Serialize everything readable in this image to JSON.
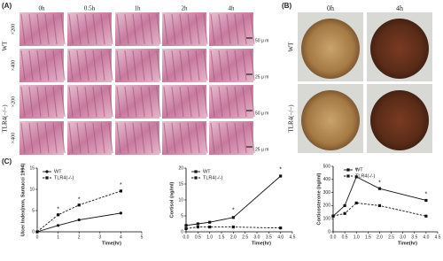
{
  "panel_a": {
    "label": "(A)",
    "times": [
      "0h",
      "0.5h",
      "1h",
      "2h",
      "4h"
    ],
    "groups": [
      {
        "name": "WT",
        "rows": [
          {
            "magnification": "×200",
            "scale": "50 μ m"
          },
          {
            "magnification": "×400",
            "scale": "25 μ m"
          }
        ]
      },
      {
        "name": "TLR4(−/−)",
        "rows": [
          {
            "magnification": "×200",
            "scale": "50 μ m"
          },
          {
            "magnification": "×400",
            "scale": "25 μ m"
          }
        ]
      }
    ]
  },
  "panel_b": {
    "label": "(B)",
    "times": [
      "0h",
      "4h"
    ],
    "groups": [
      "WT",
      "TLR4(−/−)"
    ]
  },
  "panel_c": {
    "label": "(C)"
  },
  "chart_data": [
    {
      "type": "line",
      "ylabel": "Ulcer Index(mm, Santucci 1994)",
      "xlabel": "Time(hr)",
      "x": [
        0,
        1,
        2,
        4
      ],
      "xlim": [
        0,
        5
      ],
      "xticks": [
        0,
        1,
        2,
        3,
        4,
        5
      ],
      "ylim": [
        0,
        15
      ],
      "yticks": [
        0,
        5,
        10,
        15
      ],
      "legend": "upper left",
      "series": [
        {
          "name": "WT",
          "color": "#111111",
          "dashed": false,
          "marker": "circle",
          "values": [
            0,
            1.5,
            2.8,
            4.4
          ]
        },
        {
          "name": "TLR4(-/-)",
          "color": "#111111",
          "dashed": true,
          "marker": "square",
          "values": [
            0,
            4,
            6.3,
            9.6
          ]
        }
      ],
      "annotations": [
        {
          "text": "*",
          "x": 1,
          "y": 5.3
        },
        {
          "text": "*",
          "x": 2,
          "y": 7.6
        },
        {
          "text": "*",
          "x": 4,
          "y": 11
        }
      ]
    },
    {
      "type": "line",
      "ylabel": "Cortisol (ng/ml)",
      "xlabel": "Time(hr)",
      "x": [
        0,
        0.5,
        1,
        2,
        4
      ],
      "xlim": [
        0,
        4.5
      ],
      "xticks": [
        {
          "value": 0,
          "label": "0.0"
        },
        {
          "value": 0.5,
          "label": "0.5"
        },
        {
          "value": 1,
          "label": "1.0"
        },
        {
          "value": 1.5,
          "label": "1.5"
        },
        {
          "value": 2,
          "label": "2.0"
        },
        {
          "value": 2.5,
          "label": "2.5"
        },
        {
          "value": 3,
          "label": "3.0"
        },
        {
          "value": 3.5,
          "label": "3.5"
        },
        {
          "value": 4,
          "label": "4.0"
        },
        {
          "value": 4.5,
          "label": "4.5"
        }
      ],
      "ylim": [
        0,
        20
      ],
      "yticks": [
        0,
        5,
        10,
        15,
        20
      ],
      "legend": "upper left",
      "series": [
        {
          "name": "WT",
          "color": "#111111",
          "dashed": false,
          "marker": "square",
          "values": [
            2,
            2.5,
            3,
            4.5,
            17.5
          ]
        },
        {
          "name": "TLR4(-/-)",
          "color": "#111111",
          "dashed": true,
          "marker": "square",
          "values": [
            1,
            1.5,
            1.5,
            1.5,
            1.2
          ]
        }
      ],
      "annotations": [
        {
          "text": "*",
          "x": 2,
          "y": 6.8
        },
        {
          "text": "*",
          "x": 4,
          "y": 19.5
        }
      ]
    },
    {
      "type": "line",
      "ylabel": "Corticosterone (ng/ml)",
      "xlabel": "Time(hr)",
      "x": [
        0,
        0.5,
        1,
        2,
        4
      ],
      "xlim": [
        0,
        4.5
      ],
      "xticks": [
        {
          "value": 0,
          "label": "0.0"
        },
        {
          "value": 0.5,
          "label": "0.5"
        },
        {
          "value": 1,
          "label": "1.0"
        },
        {
          "value": 1.5,
          "label": "1.5"
        },
        {
          "value": 2,
          "label": "2.0"
        },
        {
          "value": 2.5,
          "label": "2.5"
        },
        {
          "value": 3,
          "label": "3.0"
        },
        {
          "value": 3.5,
          "label": "3.5"
        },
        {
          "value": 4,
          "label": "4.0"
        },
        {
          "value": 4.5,
          "label": "4.5"
        }
      ],
      "ylim": [
        0,
        500
      ],
      "yticks": [
        0,
        100,
        200,
        300,
        400,
        500
      ],
      "legend": "upper center",
      "series": [
        {
          "name": "WT",
          "color": "#111111",
          "dashed": false,
          "marker": "square",
          "values": [
            120,
            200,
            420,
            330,
            240
          ]
        },
        {
          "name": "TLR4(-/-)",
          "color": "#111111",
          "dashed": true,
          "marker": "square",
          "values": [
            120,
            140,
            220,
            200,
            120
          ]
        }
      ],
      "annotations": [
        {
          "text": "*",
          "x": 1,
          "y": 470
        },
        {
          "text": "*",
          "x": 2,
          "y": 375
        },
        {
          "text": "*",
          "x": 4,
          "y": 285
        }
      ]
    }
  ]
}
